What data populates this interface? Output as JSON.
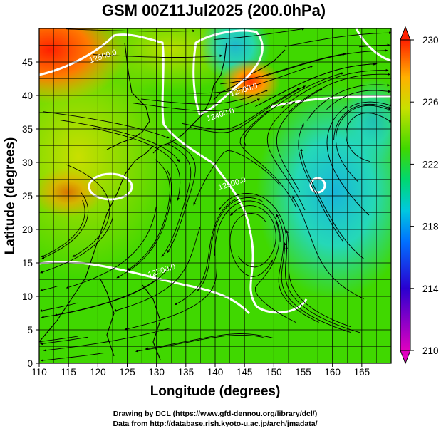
{
  "chart_data": {
    "type": "heatmap",
    "title": "GSM 00Z11Jul2025 (200.0hPa)",
    "xlabel": "Longitude (degrees)",
    "ylabel": "Latitude  (degrees)",
    "xlim": [
      110,
      170
    ],
    "ylim": [
      0,
      50
    ],
    "x_ticks": [
      110,
      115,
      120,
      125,
      130,
      135,
      140,
      145,
      150,
      155,
      160,
      165
    ],
    "y_ticks": [
      0,
      5,
      10,
      15,
      20,
      25,
      30,
      35,
      40,
      45
    ],
    "grid": true,
    "colorbar": {
      "min": 210,
      "max": 230,
      "ticks": [
        210,
        214,
        218,
        222,
        226,
        230
      ],
      "position": "right",
      "colormap": [
        "#d800c8",
        "#2a00d0",
        "#0060ff",
        "#00c8e0",
        "#00d878",
        "#40d800",
        "#c8e000",
        "#ffb000",
        "#ff2800"
      ]
    },
    "contour_labels": [
      {
        "text": "12500.0",
        "lon": 121,
        "lat": 45.5
      },
      {
        "text": "12400.0",
        "lon": 141,
        "lat": 36.8
      },
      {
        "text": "12500.0",
        "lon": 143,
        "lat": 26.5
      },
      {
        "text": "12500.0",
        "lon": 131,
        "lat": 13.5
      },
      {
        "text": "12500.0",
        "lon": 145,
        "lat": 40.5
      }
    ],
    "field_features": [
      {
        "kind": "warm",
        "lon": 145.5,
        "lat": 43.5,
        "value": 228
      },
      {
        "kind": "warm",
        "lon": 112,
        "lat": 47,
        "value": 229
      },
      {
        "kind": "cool",
        "lon": 157,
        "lat": 27,
        "value": 218
      },
      {
        "kind": "cool",
        "lon": 143,
        "lat": 45,
        "value": 219
      }
    ]
  },
  "credits": {
    "line1": "Drawing by DCL (https://www.gfd-dennou.org/library/dcl/)",
    "line2": "Data from http://database.rish.kyoto-u.ac.jp/arch/jmadata/"
  }
}
